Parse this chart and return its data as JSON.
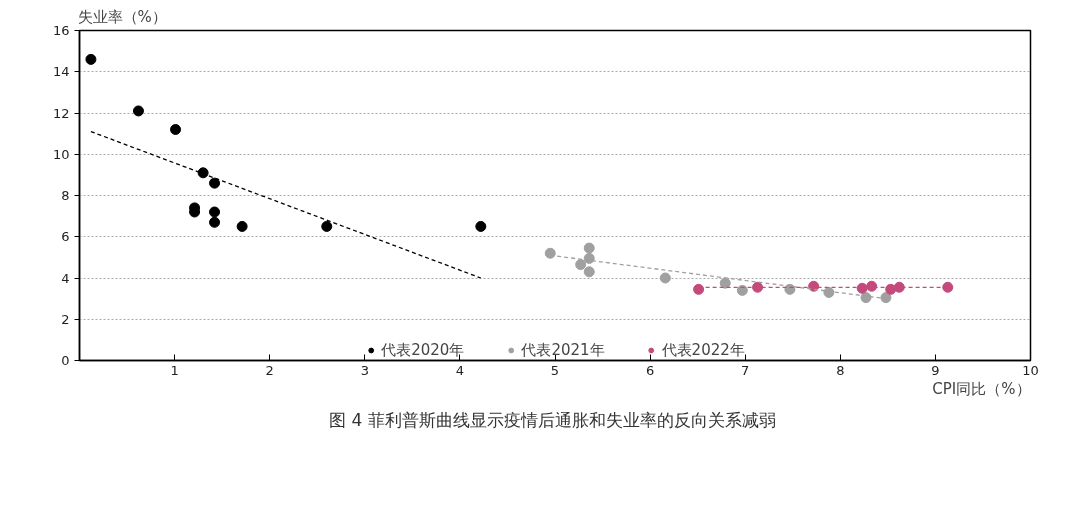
{
  "chart_data": {
    "type": "scatter",
    "title": "图 4  菲利普斯曲线显示疫情后通胀和失业率的反向关系减弱",
    "xlabel": "CPI同比（%）",
    "ylabel": "失业率（%）",
    "xlim": [
      0,
      10
    ],
    "xticks": [
      1,
      2,
      3,
      4,
      5,
      6,
      7,
      8,
      9,
      10
    ],
    "ylim": [
      0,
      16
    ],
    "yticks": [
      0,
      2,
      4,
      6,
      8,
      10,
      12,
      14,
      16
    ],
    "grid": "y",
    "legend": "bottom",
    "marker": "circle",
    "series": [
      {
        "name": "代表2020年",
        "color": "#000000",
        "x": [
          0.12,
          0.62,
          1.01,
          1.3,
          1.42,
          1.21,
          1.21,
          1.42,
          1.42,
          1.71,
          2.6,
          4.22
        ],
        "values": [
          14.6,
          12.1,
          11.2,
          9.1,
          8.6,
          7.4,
          7.2,
          7.2,
          6.7,
          6.5,
          6.5,
          6.5
        ]
      },
      {
        "name": "代表2021年",
        "color": "#a0a0a0",
        "x": [
          4.95,
          5.36,
          5.36,
          5.27,
          5.36,
          6.16,
          6.79,
          6.97,
          7.47,
          7.88,
          8.27,
          8.48
        ],
        "values": [
          5.2,
          5.45,
          4.95,
          4.65,
          4.3,
          4.0,
          3.75,
          3.4,
          3.45,
          3.3,
          3.05,
          3.05
        ]
      },
      {
        "name": "代表2022年",
        "color": "#c44a7c",
        "x": [
          6.51,
          7.13,
          7.72,
          8.23,
          8.33,
          8.53,
          8.62,
          9.13
        ],
        "values": [
          3.45,
          3.55,
          3.6,
          3.5,
          3.6,
          3.45,
          3.55,
          3.55
        ]
      },
      {
        "type": "line",
        "line_style": "dashed",
        "marker": "none",
        "color": "#000000",
        "x": [
          0.12,
          4.22
        ],
        "values": [
          11.1,
          4.0
        ]
      },
      {
        "type": "line",
        "line_style": "dashed",
        "marker": "none",
        "color": "#a0a0a0",
        "x": [
          4.95,
          8.48
        ],
        "values": [
          5.1,
          3.0
        ]
      },
      {
        "type": "line",
        "line_style": "dashed",
        "marker": "none",
        "color": "#c44a7c",
        "x": [
          6.51,
          9.13
        ],
        "values": [
          3.55,
          3.55
        ]
      }
    ]
  }
}
